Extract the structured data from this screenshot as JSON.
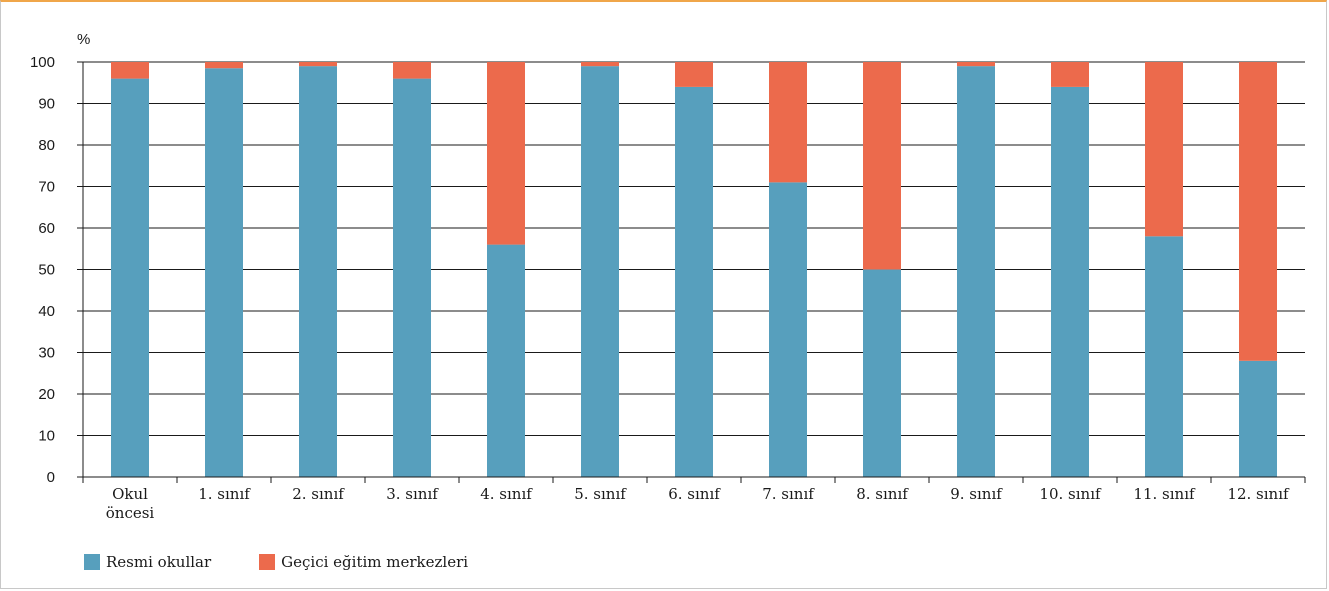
{
  "chart_data": {
    "type": "bar",
    "stacked": true,
    "ylabel": "%",
    "ylim": [
      0,
      100
    ],
    "yticks": [
      0,
      10,
      20,
      30,
      40,
      50,
      60,
      70,
      80,
      90,
      100
    ],
    "grid": true,
    "legend_position": "bottom-left",
    "categories": [
      [
        "Okul",
        "öncesi"
      ],
      [
        "1. sınıf"
      ],
      [
        "2. sınıf"
      ],
      [
        "3. sınıf"
      ],
      [
        "4. sınıf"
      ],
      [
        "5. sınıf"
      ],
      [
        "6. sınıf"
      ],
      [
        "7. sınıf"
      ],
      [
        "8. sınıf"
      ],
      [
        "9. sınıf"
      ],
      [
        "10. sınıf"
      ],
      [
        "11. sınıf"
      ],
      [
        "12. sınıf"
      ]
    ],
    "series": [
      {
        "name": "Resmi okullar",
        "color": "#579fbd",
        "values": [
          96,
          98.5,
          99,
          96,
          56,
          99,
          94,
          71,
          50,
          99,
          94,
          58,
          28
        ]
      },
      {
        "name": "Geçici eğitim merkezleri",
        "color": "#ec6a4c",
        "values": [
          4,
          1.5,
          1,
          4,
          44,
          1,
          6,
          29,
          50,
          1,
          6,
          42,
          72
        ]
      }
    ]
  }
}
